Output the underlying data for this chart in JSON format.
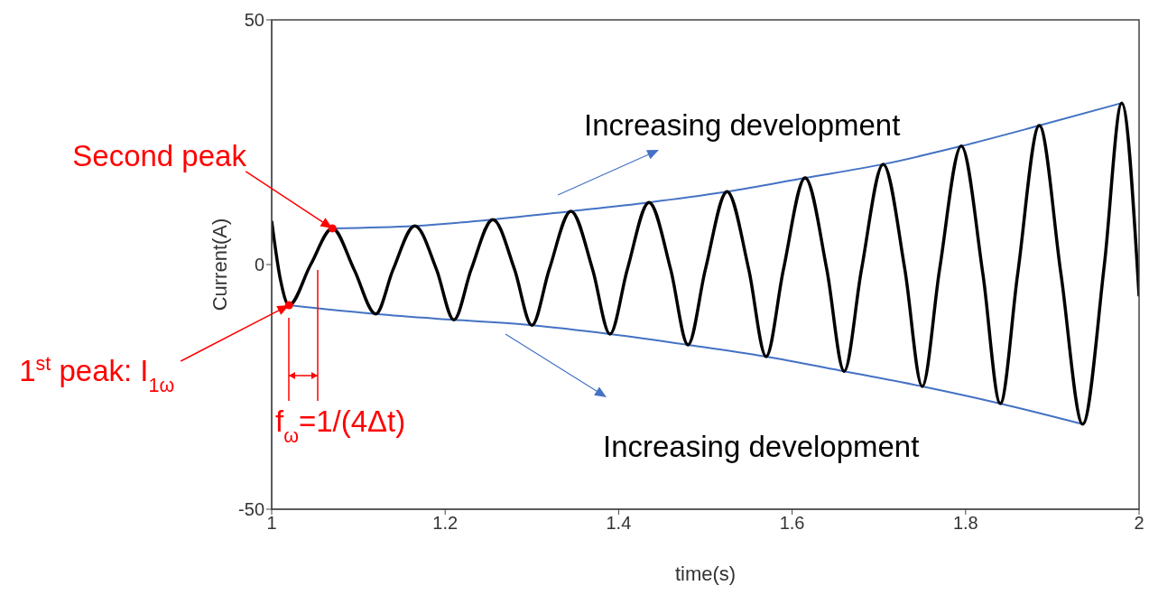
{
  "chart_data": {
    "type": "line",
    "xlabel": "time(s)",
    "ylabel": "Current(A)",
    "xlim": [
      1,
      2
    ],
    "ylim": [
      -50,
      50
    ],
    "xticks": [
      1,
      1.2,
      1.4,
      1.6,
      1.8,
      2
    ],
    "yticks": [
      -50,
      0,
      50
    ],
    "line_style": "solid",
    "series": [
      {
        "type": "line",
        "color": "#4472c4",
        "x": [
          1.07,
          1.165,
          1.255,
          1.345,
          1.435,
          1.525,
          1.615,
          1.705,
          1.795,
          1.885,
          1.98
        ],
        "values": [
          7.4,
          7.9,
          9.2,
          10.9,
          12.7,
          14.9,
          17.7,
          20.5,
          24.2,
          28.4,
          33.0
        ]
      },
      {
        "type": "line",
        "color": "#4472c4",
        "x": [
          1.02,
          1.12,
          1.21,
          1.3,
          1.39,
          1.48,
          1.57,
          1.66,
          1.75,
          1.84,
          1.935
        ],
        "values": [
          -8.3,
          -10.1,
          -11.3,
          -12.4,
          -14.2,
          -16.4,
          -18.8,
          -21.8,
          -24.9,
          -28.4,
          -32.6
        ]
      },
      {
        "color": "#000000",
        "x": [
          1.0,
          1.01,
          1.02,
          1.045,
          1.07,
          1.095,
          1.12,
          1.14,
          1.165,
          1.19,
          1.21,
          1.23,
          1.255,
          1.28,
          1.3,
          1.32,
          1.345,
          1.37,
          1.39,
          1.41,
          1.435,
          1.46,
          1.48,
          1.5,
          1.525,
          1.55,
          1.57,
          1.59,
          1.615,
          1.64,
          1.66,
          1.68,
          1.705,
          1.73,
          1.75,
          1.77,
          1.795,
          1.82,
          1.84,
          1.86,
          1.885,
          1.91,
          1.935,
          1.96,
          1.98,
          2.0
        ],
        "values": [
          8.9,
          -3,
          -8.3,
          0,
          7.4,
          -1,
          -10.1,
          -1,
          7.9,
          -1,
          -11.3,
          -1,
          9.2,
          -1,
          -12.4,
          -1,
          10.9,
          -1,
          -14.2,
          -1,
          12.7,
          -1,
          -16.4,
          -1,
          14.9,
          -1,
          -18.8,
          -1,
          17.7,
          -1,
          -21.8,
          -1,
          20.5,
          -1,
          -24.9,
          -1,
          24.2,
          -2,
          -28.4,
          -2,
          28.4,
          -2,
          -32.6,
          0,
          33.0,
          -6.5
        ]
      },
      {
        "type": "scatter",
        "color": "#ff0000",
        "x": [
          1.02,
          1.07
        ],
        "values": [
          -8.3,
          7.4
        ]
      }
    ],
    "annotations": [
      {
        "text": "Second peak",
        "x": 1.07,
        "y": 7.4
      },
      {
        "text": "1$^{st}$ peak: I$_{1ω}$",
        "x": 1.02,
        "y": -8.3
      },
      "f$_{ω}$=1/(4Δt)",
      "Increasing development",
      "Increasing development"
    ]
  }
}
